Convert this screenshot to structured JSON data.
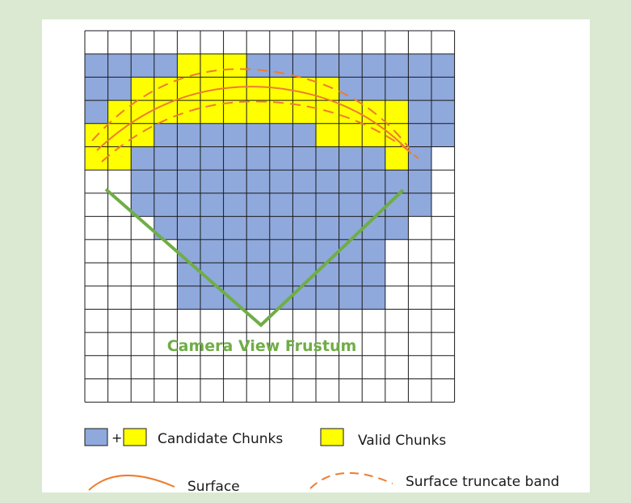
{
  "diagram": {
    "grid": {
      "cols": 16,
      "rows": 16
    },
    "colors": {
      "candidate": "#8fa9dc",
      "valid": "#ffff00",
      "grid_line": "#1a1a1a",
      "cell_bg": "#ffffff",
      "surface": "#ed7d31",
      "frustum": "#70ad47",
      "frustum_label": "#70ad47"
    },
    "candidate_rows": [
      [],
      [
        0,
        15
      ],
      [
        0,
        15
      ],
      [
        0,
        15
      ],
      [
        0,
        15
      ],
      [
        1,
        14
      ],
      [
        2,
        14
      ],
      [
        2,
        14
      ],
      [
        3,
        13
      ],
      [
        4,
        12
      ],
      [
        4,
        12
      ],
      [
        4,
        12
      ],
      [],
      [],
      [],
      []
    ],
    "valid_rows": [
      [],
      [
        [
          4,
          6
        ]
      ],
      [
        [
          2,
          10
        ]
      ],
      [
        [
          1,
          13
        ]
      ],
      [
        [
          0,
          2
        ],
        [
          10,
          13
        ]
      ],
      [
        [
          0,
          1
        ],
        [
          13,
          13
        ]
      ],
      [],
      [],
      [],
      [],
      [],
      [],
      [],
      [],
      [],
      []
    ],
    "frustum_label": "Camera View Frustum"
  },
  "legend": {
    "plus": "+",
    "candidate_label": "Candidate Chunks",
    "valid_label": "Valid Chunks",
    "surface_label": "Surface",
    "band_label": "Surface truncate band"
  }
}
